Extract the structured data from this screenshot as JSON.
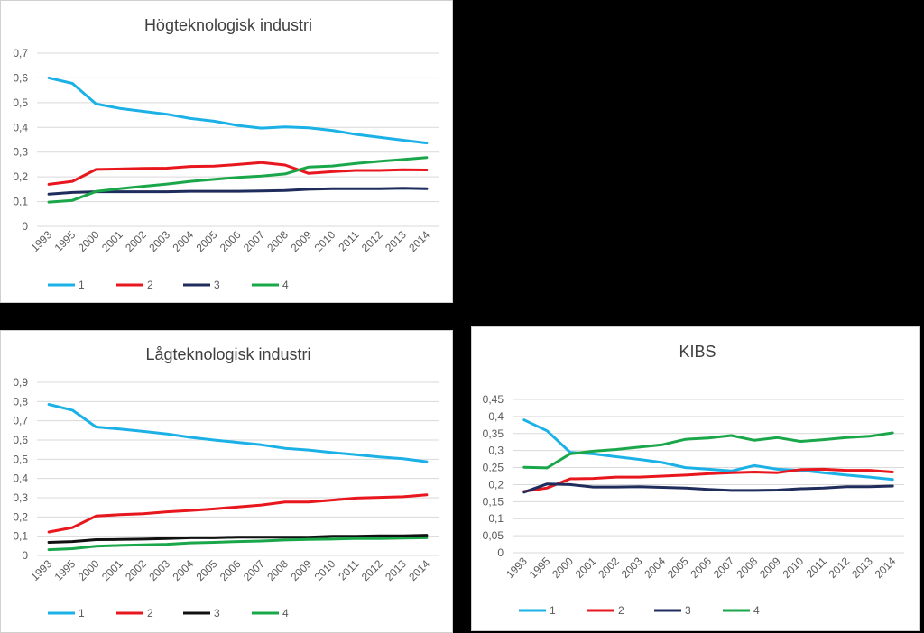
{
  "colors": {
    "s1": "#1bb1e7",
    "s2": "#e8171d",
    "s3_dark": "#1f2d5c",
    "s3_black": "#111111",
    "s4": "#1aa74a",
    "grid": "#d9d9d9",
    "text": "#595959",
    "panel_bg": "#ffffff",
    "page_bg": "#000000"
  },
  "chart_data": [
    {
      "type": "line",
      "title": "Högteknologisk industri",
      "categories": [
        "1993",
        "1995",
        "2000",
        "2001",
        "2002",
        "2003",
        "2004",
        "2005",
        "2006",
        "2007",
        "2008",
        "2009",
        "2010",
        "2011",
        "2012",
        "2013",
        "2014"
      ],
      "y_ticks": [
        "0",
        "0,1",
        "0,2",
        "0,3",
        "0,4",
        "0,5",
        "0,6",
        "0,7"
      ],
      "ylim": [
        0,
        0.7
      ],
      "series": [
        {
          "name": "1",
          "color_key": "s1",
          "values": [
            0.6,
            0.578,
            0.495,
            0.477,
            0.465,
            0.453,
            0.436,
            0.425,
            0.408,
            0.397,
            0.402,
            0.398,
            0.388,
            0.372,
            0.36,
            0.348,
            0.337
          ]
        },
        {
          "name": "2",
          "color_key": "s2",
          "values": [
            0.17,
            0.182,
            0.23,
            0.232,
            0.234,
            0.235,
            0.242,
            0.243,
            0.25,
            0.258,
            0.248,
            0.214,
            0.221,
            0.226,
            0.226,
            0.229,
            0.228
          ]
        },
        {
          "name": "3",
          "color_key": "s3_dark",
          "values": [
            0.13,
            0.137,
            0.14,
            0.14,
            0.14,
            0.14,
            0.142,
            0.142,
            0.142,
            0.143,
            0.145,
            0.15,
            0.152,
            0.152,
            0.152,
            0.154,
            0.152
          ]
        },
        {
          "name": "4",
          "color_key": "s4",
          "values": [
            0.098,
            0.105,
            0.141,
            0.152,
            0.162,
            0.171,
            0.182,
            0.19,
            0.198,
            0.203,
            0.212,
            0.24,
            0.244,
            0.254,
            0.263,
            0.27,
            0.278
          ]
        }
      ],
      "legend": [
        "1",
        "2",
        "3",
        "4"
      ]
    },
    {
      "type": "line",
      "title": "Lågteknologisk industri",
      "categories": [
        "1993",
        "1995",
        "2000",
        "2001",
        "2002",
        "2003",
        "2004",
        "2005",
        "2006",
        "2007",
        "2008",
        "2009",
        "2010",
        "2011",
        "2012",
        "2013",
        "2014"
      ],
      "y_ticks": [
        "0",
        "0,1",
        "0,2",
        "0,3",
        "0,4",
        "0,5",
        "0,6",
        "0,7",
        "0,8",
        "0,9"
      ],
      "ylim": [
        0,
        0.9
      ],
      "series": [
        {
          "name": "1",
          "color_key": "s1",
          "values": [
            0.785,
            0.755,
            0.668,
            0.657,
            0.645,
            0.632,
            0.614,
            0.6,
            0.588,
            0.575,
            0.557,
            0.548,
            0.535,
            0.524,
            0.512,
            0.503,
            0.487
          ]
        },
        {
          "name": "2",
          "color_key": "s2",
          "values": [
            0.122,
            0.145,
            0.205,
            0.212,
            0.217,
            0.227,
            0.234,
            0.242,
            0.252,
            0.262,
            0.278,
            0.278,
            0.288,
            0.298,
            0.302,
            0.305,
            0.315
          ]
        },
        {
          "name": "3",
          "color_key": "s3_black",
          "values": [
            0.068,
            0.072,
            0.082,
            0.083,
            0.085,
            0.088,
            0.092,
            0.092,
            0.095,
            0.095,
            0.095,
            0.095,
            0.1,
            0.1,
            0.102,
            0.102,
            0.105
          ]
        },
        {
          "name": "4",
          "color_key": "s4",
          "values": [
            0.03,
            0.035,
            0.048,
            0.052,
            0.055,
            0.058,
            0.065,
            0.068,
            0.072,
            0.075,
            0.08,
            0.083,
            0.085,
            0.088,
            0.088,
            0.09,
            0.092
          ]
        }
      ],
      "legend": [
        "1",
        "2",
        "3",
        "4"
      ]
    },
    {
      "type": "line",
      "title": "KIBS",
      "categories": [
        "1993",
        "1995",
        "2000",
        "2001",
        "2002",
        "2003",
        "2004",
        "2005",
        "2006",
        "2007",
        "2008",
        "2009",
        "2010",
        "2011",
        "2012",
        "2013",
        "2014"
      ],
      "y_ticks": [
        "0",
        "0,05",
        "0,1",
        "0,15",
        "0,2",
        "0,25",
        "0,3",
        "0,35",
        "0,4",
        "0,45"
      ],
      "ylim": [
        0,
        0.45
      ],
      "series": [
        {
          "name": "1",
          "color_key": "s1",
          "values": [
            0.39,
            0.358,
            0.295,
            0.29,
            0.282,
            0.274,
            0.265,
            0.25,
            0.245,
            0.24,
            0.256,
            0.245,
            0.242,
            0.235,
            0.228,
            0.222,
            0.215
          ]
        },
        {
          "name": "2",
          "color_key": "s2",
          "values": [
            0.18,
            0.19,
            0.217,
            0.218,
            0.222,
            0.222,
            0.225,
            0.228,
            0.232,
            0.235,
            0.237,
            0.235,
            0.244,
            0.245,
            0.242,
            0.242,
            0.237
          ]
        },
        {
          "name": "3",
          "color_key": "s3_dark",
          "values": [
            0.178,
            0.202,
            0.2,
            0.193,
            0.193,
            0.194,
            0.192,
            0.19,
            0.186,
            0.183,
            0.183,
            0.184,
            0.188,
            0.19,
            0.194,
            0.194,
            0.196
          ]
        },
        {
          "name": "4",
          "color_key": "s4",
          "values": [
            0.251,
            0.249,
            0.29,
            0.298,
            0.303,
            0.31,
            0.317,
            0.333,
            0.337,
            0.344,
            0.33,
            0.338,
            0.327,
            0.332,
            0.338,
            0.342,
            0.352
          ]
        }
      ],
      "legend": [
        "1",
        "2",
        "3",
        "4"
      ]
    }
  ]
}
